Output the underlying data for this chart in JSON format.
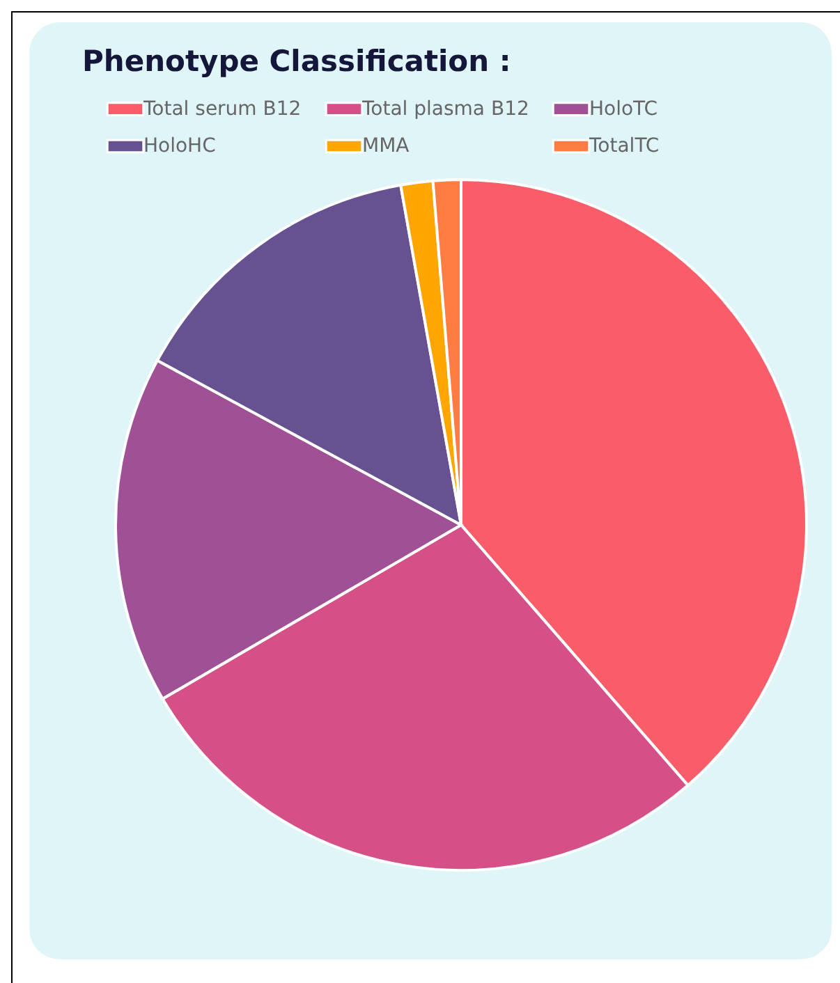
{
  "chart_data": {
    "type": "pie",
    "title": "Phenotype Classification :",
    "categories": [
      "Total serum B12",
      "Total plasma B12",
      "HoloTC",
      "HoloHC",
      "MMA",
      "TotalTC"
    ],
    "values": [
      38.6,
      28,
      16.3,
      14.3,
      1.5,
      1.3
    ],
    "colors": [
      "#f95d6a",
      "#d45087",
      "#a05195",
      "#665191",
      "#ffa600",
      "#ff7c43"
    ],
    "legend": "top"
  }
}
